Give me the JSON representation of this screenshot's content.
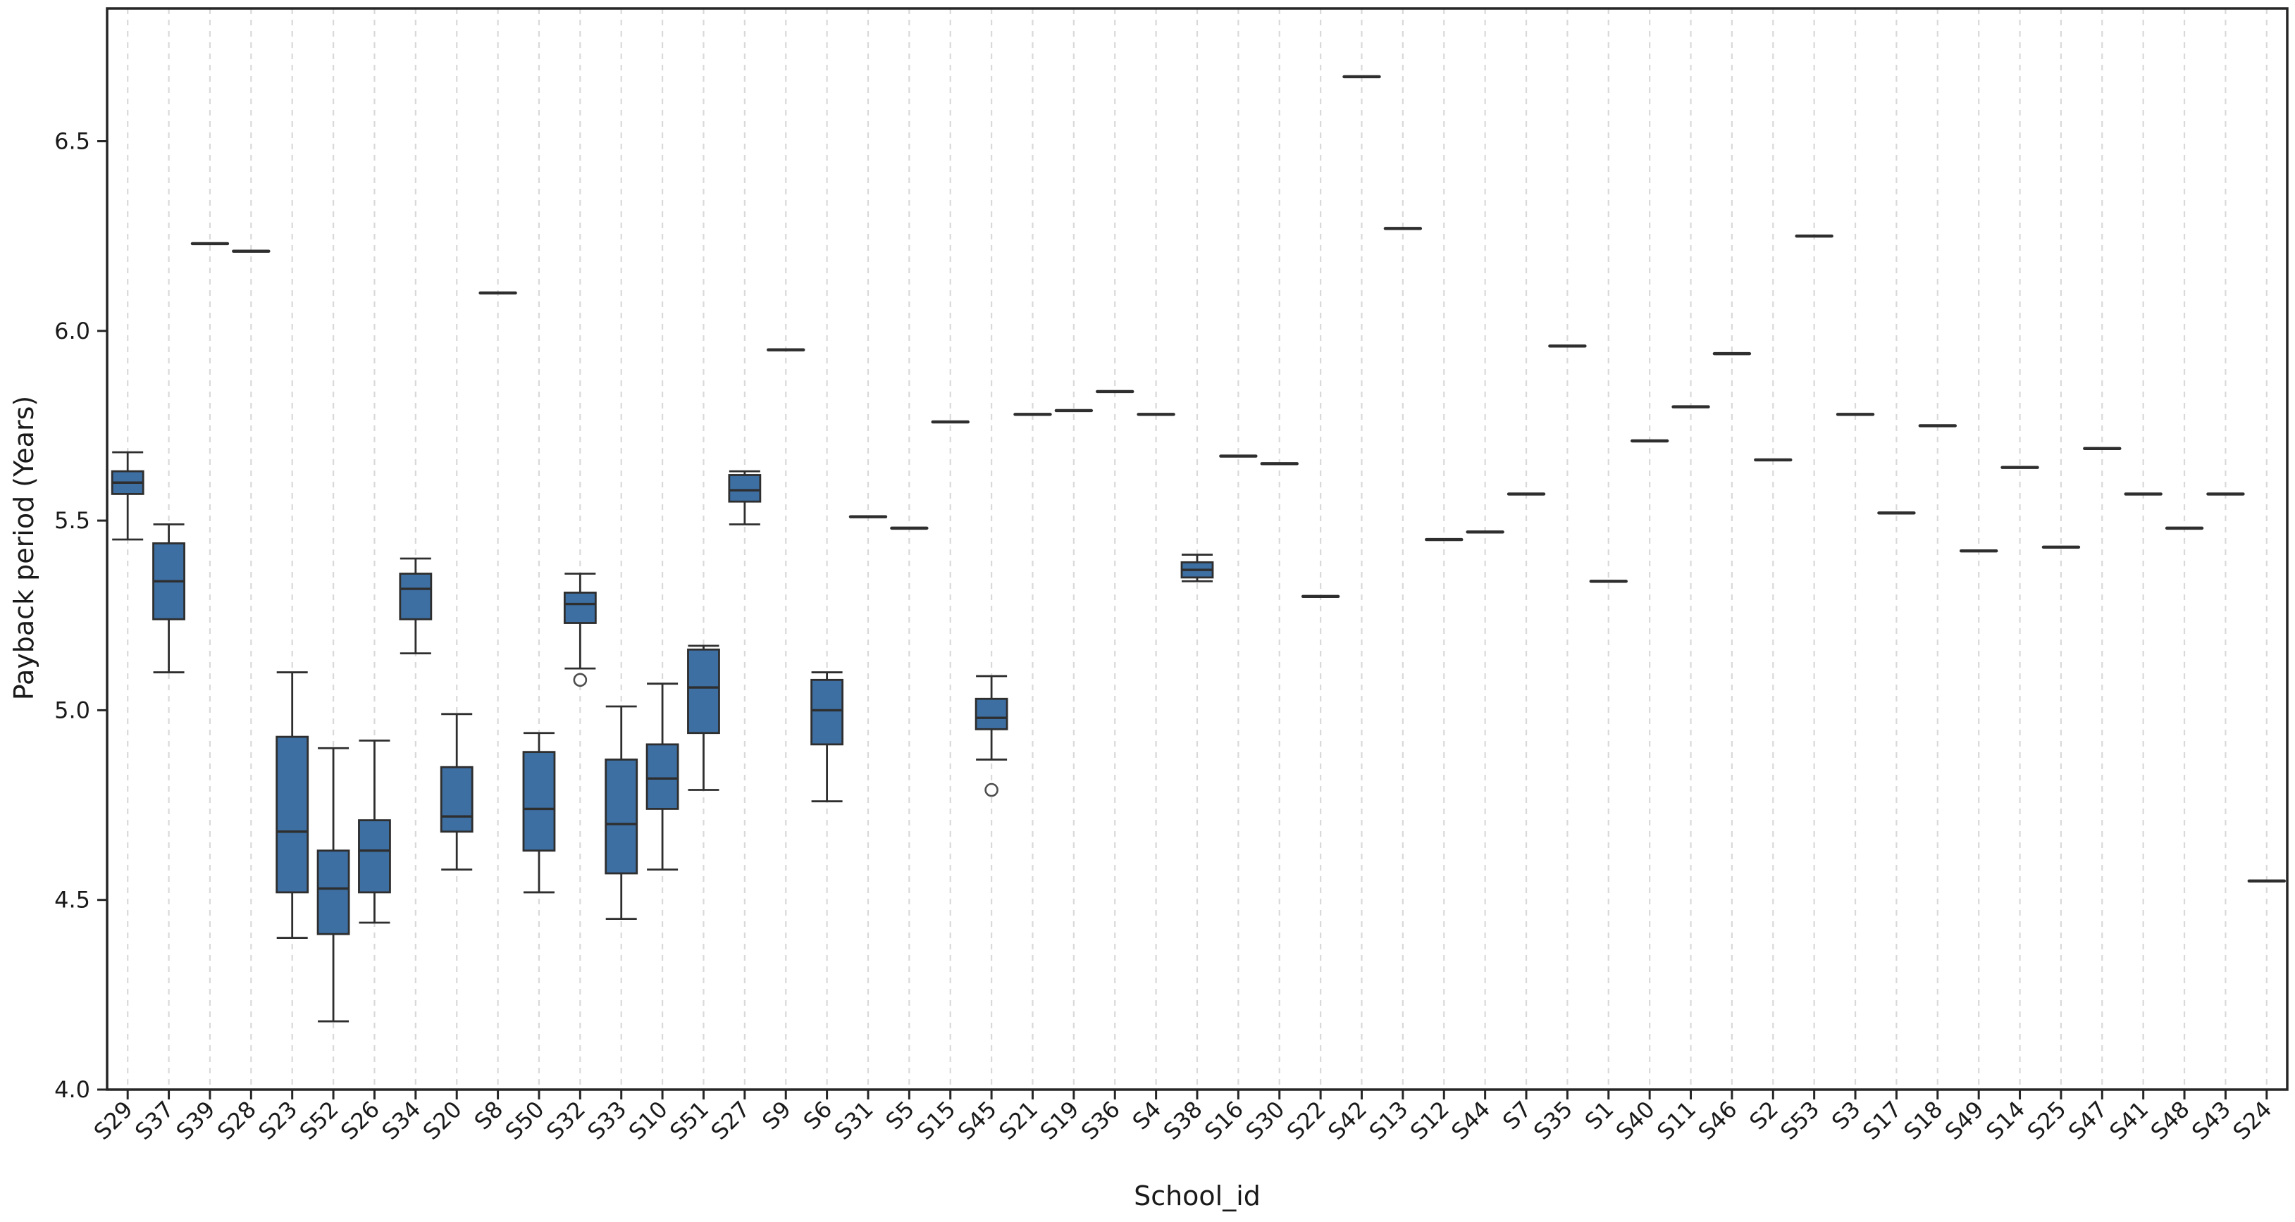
{
  "chart_data": {
    "type": "boxplot",
    "title": "",
    "xlabel": "School_id",
    "ylabel": "Payback period (Years)",
    "ylim": [
      4.0,
      6.85
    ],
    "yticks": [
      4.0,
      4.5,
      5.0,
      5.5,
      6.0,
      6.5
    ],
    "grid": "vertical-dashed",
    "legend": "none",
    "colors": {
      "box_fill": "#3d6fa3",
      "box_edge": "#2e2e2e",
      "whisker": "#2e2e2e",
      "outlier_edge": "#4d4d4d",
      "gridline": "#d9d9d9",
      "spine": "#262626",
      "text": "#1a1a1a"
    },
    "categories": [
      "S29",
      "S37",
      "S39",
      "S28",
      "S23",
      "S52",
      "S26",
      "S34",
      "S20",
      "S8",
      "S50",
      "S32",
      "S33",
      "S10",
      "S51",
      "S27",
      "S9",
      "S6",
      "S31",
      "S5",
      "S15",
      "S45",
      "S21",
      "S19",
      "S36",
      "S4",
      "S38",
      "S16",
      "S30",
      "S22",
      "S42",
      "S13",
      "S12",
      "S44",
      "S7",
      "S35",
      "S1",
      "S40",
      "S11",
      "S46",
      "S2",
      "S53",
      "S3",
      "S17",
      "S18",
      "S49",
      "S14",
      "S25",
      "S47",
      "S41",
      "S48",
      "S43",
      "S24"
    ],
    "series": [
      {
        "id": "S29",
        "min": 5.45,
        "q1": 5.57,
        "median": 5.6,
        "q3": 5.63,
        "max": 5.68
      },
      {
        "id": "S37",
        "min": 5.1,
        "q1": 5.24,
        "median": 5.34,
        "q3": 5.44,
        "max": 5.49
      },
      {
        "id": "S39",
        "value": 6.23
      },
      {
        "id": "S28",
        "value": 6.21
      },
      {
        "id": "S23",
        "min": 4.4,
        "q1": 4.52,
        "median": 4.68,
        "q3": 4.93,
        "max": 5.1
      },
      {
        "id": "S52",
        "min": 4.18,
        "q1": 4.41,
        "median": 4.53,
        "q3": 4.63,
        "max": 4.9
      },
      {
        "id": "S26",
        "min": 4.44,
        "q1": 4.52,
        "median": 4.63,
        "q3": 4.71,
        "max": 4.92
      },
      {
        "id": "S34",
        "min": 5.15,
        "q1": 5.24,
        "median": 5.32,
        "q3": 5.36,
        "max": 5.4
      },
      {
        "id": "S20",
        "min": 4.58,
        "q1": 4.68,
        "median": 4.72,
        "q3": 4.85,
        "max": 4.99
      },
      {
        "id": "S8",
        "value": 6.1
      },
      {
        "id": "S50",
        "min": 4.52,
        "q1": 4.63,
        "median": 4.74,
        "q3": 4.89,
        "max": 4.94
      },
      {
        "id": "S32",
        "min": 5.11,
        "q1": 5.23,
        "median": 5.28,
        "q3": 5.31,
        "max": 5.36,
        "outliers": [
          5.08
        ]
      },
      {
        "id": "S33",
        "min": 4.45,
        "q1": 4.57,
        "median": 4.7,
        "q3": 4.87,
        "max": 5.01
      },
      {
        "id": "S10",
        "min": 4.58,
        "q1": 4.74,
        "median": 4.82,
        "q3": 4.91,
        "max": 5.07
      },
      {
        "id": "S51",
        "min": 4.79,
        "q1": 4.94,
        "median": 5.06,
        "q3": 5.16,
        "max": 5.17
      },
      {
        "id": "S27",
        "min": 5.49,
        "q1": 5.55,
        "median": 5.58,
        "q3": 5.62,
        "max": 5.63
      },
      {
        "id": "S9",
        "value": 5.95
      },
      {
        "id": "S6",
        "min": 4.76,
        "q1": 4.91,
        "median": 5.0,
        "q3": 5.08,
        "max": 5.1
      },
      {
        "id": "S31",
        "value": 5.51
      },
      {
        "id": "S5",
        "value": 5.48
      },
      {
        "id": "S15",
        "value": 5.76
      },
      {
        "id": "S45",
        "min": 4.87,
        "q1": 4.95,
        "median": 4.98,
        "q3": 5.03,
        "max": 5.09,
        "outliers": [
          4.79
        ]
      },
      {
        "id": "S21",
        "value": 5.78
      },
      {
        "id": "S19",
        "value": 5.79
      },
      {
        "id": "S36",
        "value": 5.84
      },
      {
        "id": "S4",
        "value": 5.78
      },
      {
        "id": "S38",
        "min": 5.34,
        "q1": 5.35,
        "median": 5.37,
        "q3": 5.39,
        "max": 5.41
      },
      {
        "id": "S16",
        "value": 5.67
      },
      {
        "id": "S30",
        "value": 5.65
      },
      {
        "id": "S22",
        "value": 5.3
      },
      {
        "id": "S42",
        "value": 6.67
      },
      {
        "id": "S13",
        "value": 6.27
      },
      {
        "id": "S12",
        "value": 5.45
      },
      {
        "id": "S44",
        "value": 5.47
      },
      {
        "id": "S7",
        "value": 5.57
      },
      {
        "id": "S35",
        "value": 5.96
      },
      {
        "id": "S1",
        "value": 5.34
      },
      {
        "id": "S40",
        "value": 5.71
      },
      {
        "id": "S11",
        "value": 5.8
      },
      {
        "id": "S46",
        "value": 5.94
      },
      {
        "id": "S2",
        "value": 5.66
      },
      {
        "id": "S53",
        "value": 6.25
      },
      {
        "id": "S3",
        "value": 5.78
      },
      {
        "id": "S17",
        "value": 5.52
      },
      {
        "id": "S18",
        "value": 5.75
      },
      {
        "id": "S49",
        "value": 5.42
      },
      {
        "id": "S14",
        "value": 5.64
      },
      {
        "id": "S25",
        "value": 5.43
      },
      {
        "id": "S47",
        "value": 5.69
      },
      {
        "id": "S41",
        "value": 5.57
      },
      {
        "id": "S48",
        "value": 5.48
      },
      {
        "id": "S43",
        "value": 5.57
      },
      {
        "id": "S24",
        "value": 4.55
      }
    ]
  }
}
